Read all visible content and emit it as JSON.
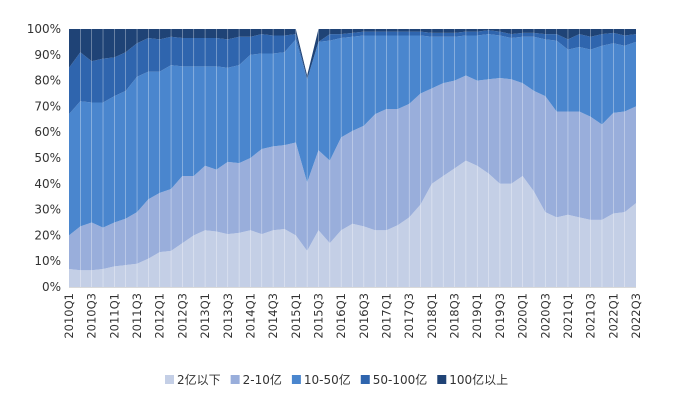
{
  "chart_data": {
    "type": "area",
    "stacked": true,
    "percent": true,
    "ylim": [
      0,
      100
    ],
    "yticks": [
      "0%",
      "10%",
      "20%",
      "30%",
      "40%",
      "50%",
      "60%",
      "70%",
      "80%",
      "90%",
      "100%"
    ],
    "grid": false,
    "legend_position": "bottom",
    "x": [
      "2010Q1",
      "2010Q2",
      "2010Q3",
      "2010Q4",
      "2011Q1",
      "2011Q2",
      "2011Q3",
      "2011Q4",
      "2012Q1",
      "2012Q2",
      "2012Q3",
      "2012Q4",
      "2013Q1",
      "2013Q2",
      "2013Q3",
      "2013Q4",
      "2014Q1",
      "2014Q2",
      "2014Q3",
      "2014Q4",
      "2015Q1",
      "2015Q2",
      "2015Q3",
      "2015Q4",
      "2016Q1",
      "2016Q2",
      "2016Q3",
      "2016Q4",
      "2017Q1",
      "2017Q2",
      "2017Q3",
      "2017Q4",
      "2018Q1",
      "2018Q2",
      "2018Q3",
      "2018Q4",
      "2019Q1",
      "2019Q2",
      "2019Q3",
      "2019Q4",
      "2020Q1",
      "2020Q2",
      "2020Q3",
      "2020Q4",
      "2021Q1",
      "2021Q2",
      "2021Q3",
      "2021Q4",
      "2022Q1",
      "2022Q2",
      "2022Q3"
    ],
    "x_tick_labels": [
      "2010Q1",
      "2010Q3",
      "2011Q1",
      "2011Q3",
      "2012Q1",
      "2012Q3",
      "2013Q1",
      "2013Q3",
      "2014Q1",
      "2014Q3",
      "2015Q1",
      "2015Q3",
      "2016Q1",
      "2016Q3",
      "2017Q1",
      "2017Q3",
      "2018Q1",
      "2018Q3",
      "2019Q1",
      "2019Q3",
      "2020Q1",
      "2020Q3",
      "2021Q1",
      "2021Q3",
      "2022Q1",
      "2022Q3"
    ],
    "series": [
      {
        "name": "2亿以下",
        "color": "#C4CFE6",
        "values": [
          7,
          6.5,
          6.5,
          7,
          8,
          8.5,
          9,
          11,
          13.5,
          14,
          17,
          20,
          22,
          21.5,
          20.5,
          21,
          22,
          20.5,
          22,
          22.5,
          20,
          14,
          22,
          17,
          22,
          24.5,
          23.5,
          22,
          22,
          24,
          27,
          32,
          40,
          43,
          46,
          49,
          47,
          44,
          40,
          40,
          43,
          37,
          29,
          27,
          28,
          27,
          26,
          26,
          28.5,
          29,
          32.5
        ]
      },
      {
        "name": "2-10亿",
        "color": "#99AEDB",
        "values": [
          13,
          17,
          18.5,
          16,
          17,
          18,
          20,
          23,
          23,
          24,
          26,
          23,
          25,
          24,
          28,
          27,
          28,
          33,
          32.5,
          32.5,
          36,
          26.5,
          31,
          32,
          36,
          36,
          39,
          45,
          47,
          45,
          44,
          43,
          37,
          36,
          34,
          33,
          33,
          36.5,
          41,
          40.5,
          36,
          39,
          45,
          41,
          40,
          41,
          40,
          37,
          39,
          39,
          37.5
        ]
      },
      {
        "name": "10-50亿",
        "color": "#4A86CE",
        "values": [
          47,
          48.5,
          46.5,
          48.5,
          49,
          49.5,
          52.5,
          49.5,
          47,
          48,
          42.5,
          42.5,
          38.5,
          40,
          36.5,
          38,
          40,
          37,
          36,
          36,
          40,
          40,
          42,
          46.5,
          38.5,
          36.5,
          35,
          30.5,
          28.5,
          28.5,
          26.5,
          22.5,
          20,
          18,
          17,
          15.5,
          17.5,
          17.5,
          16.5,
          16,
          18,
          21,
          22,
          27.5,
          24,
          25,
          26,
          30.5,
          27,
          25.5,
          25
        ]
      },
      {
        "name": "50-100亿",
        "color": "#2F65AE",
        "values": [
          18,
          19,
          16,
          17,
          15,
          15,
          13,
          13,
          12.5,
          11,
          11,
          11,
          11,
          11,
          11,
          11,
          7,
          7.5,
          7,
          6.5,
          2,
          0,
          0,
          2.5,
          1.5,
          1.5,
          1.5,
          1.5,
          1.5,
          1.5,
          1.5,
          1.5,
          1.5,
          1.5,
          1.5,
          1.5,
          1.5,
          1.5,
          1.5,
          1.5,
          1.5,
          1.5,
          2,
          2.5,
          4,
          5,
          5,
          4.5,
          4,
          4,
          3
        ]
      },
      {
        "name": "100亿以上",
        "color": "#1F4376",
        "values": [
          15,
          9,
          12.5,
          11.5,
          11,
          9,
          5.5,
          3.5,
          4,
          3,
          3.5,
          3.5,
          3.5,
          3.5,
          4,
          3,
          3,
          2,
          2.5,
          2.5,
          2,
          1.5,
          5,
          2,
          2,
          1.5,
          1,
          1,
          1,
          1,
          1,
          1,
          1.5,
          1.5,
          1.5,
          1,
          1,
          0.5,
          1,
          2,
          1.5,
          1.5,
          2,
          2,
          4,
          2,
          3,
          2,
          1.5,
          2.5,
          2
        ]
      }
    ]
  }
}
